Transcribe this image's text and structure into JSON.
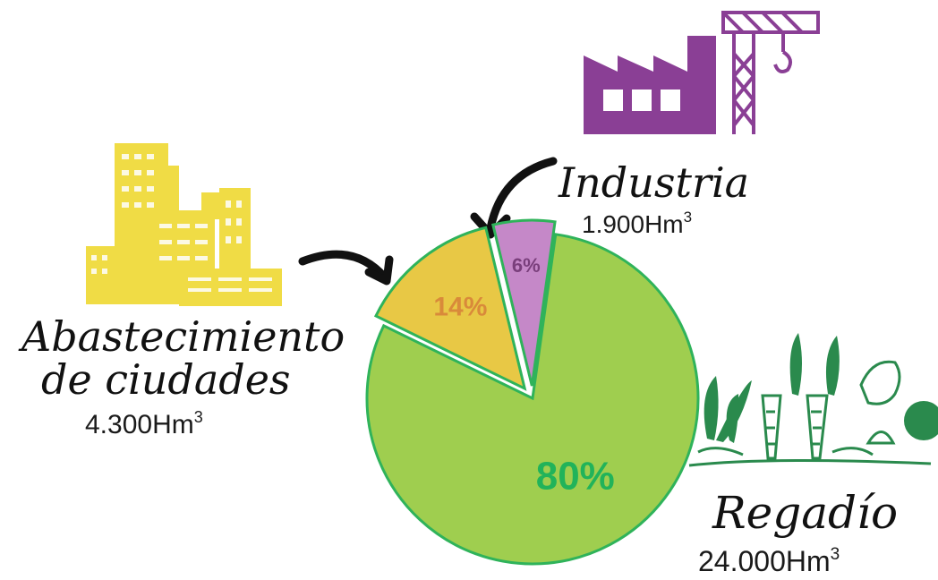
{
  "chart_data": {
    "type": "pie",
    "slices": [
      {
        "name": "Regadío",
        "percent": 80,
        "percent_label": "80%",
        "volume": "24.000Hm",
        "unit_sup": "3",
        "color": "#9fce4f",
        "label_color": "#21b35a"
      },
      {
        "name": "Abastecimiento de ciudades",
        "name_lines": [
          "Abastecimiento",
          "de ciudades"
        ],
        "percent": 14,
        "percent_label": "14%",
        "volume": "4.300Hm",
        "unit_sup": "3",
        "color": "#e8c845",
        "label_color": "#d98a3a"
      },
      {
        "name": "Industria",
        "percent": 6,
        "percent_label": "6%",
        "volume": "1.900Hm",
        "unit_sup": "3",
        "color": "#c588c8",
        "label_color": "#7a3f7c"
      }
    ],
    "outline_color": "#2fb35a"
  },
  "icons": [
    "city-buildings-icon",
    "factory-crane-icon",
    "vegetables-icon",
    "arrow-icon"
  ],
  "colors": {
    "city": "#f0dc45",
    "factory": "#8a3f95",
    "plants": "#2a8a4d",
    "arrow": "#111111"
  }
}
